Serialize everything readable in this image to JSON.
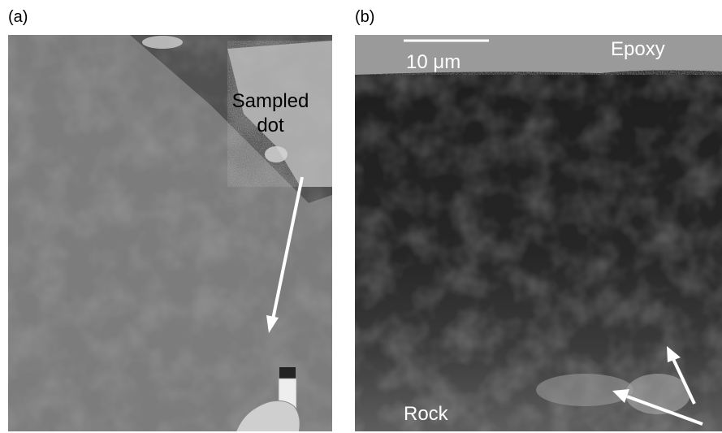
{
  "panels": [
    {
      "label": "(a)",
      "annotation_lines": [
        "Sampled",
        "dot"
      ]
    },
    {
      "label": "(b)",
      "scale_bar": "10 μm",
      "top_label": "Epoxy",
      "bottom_label": "Rock"
    }
  ]
}
